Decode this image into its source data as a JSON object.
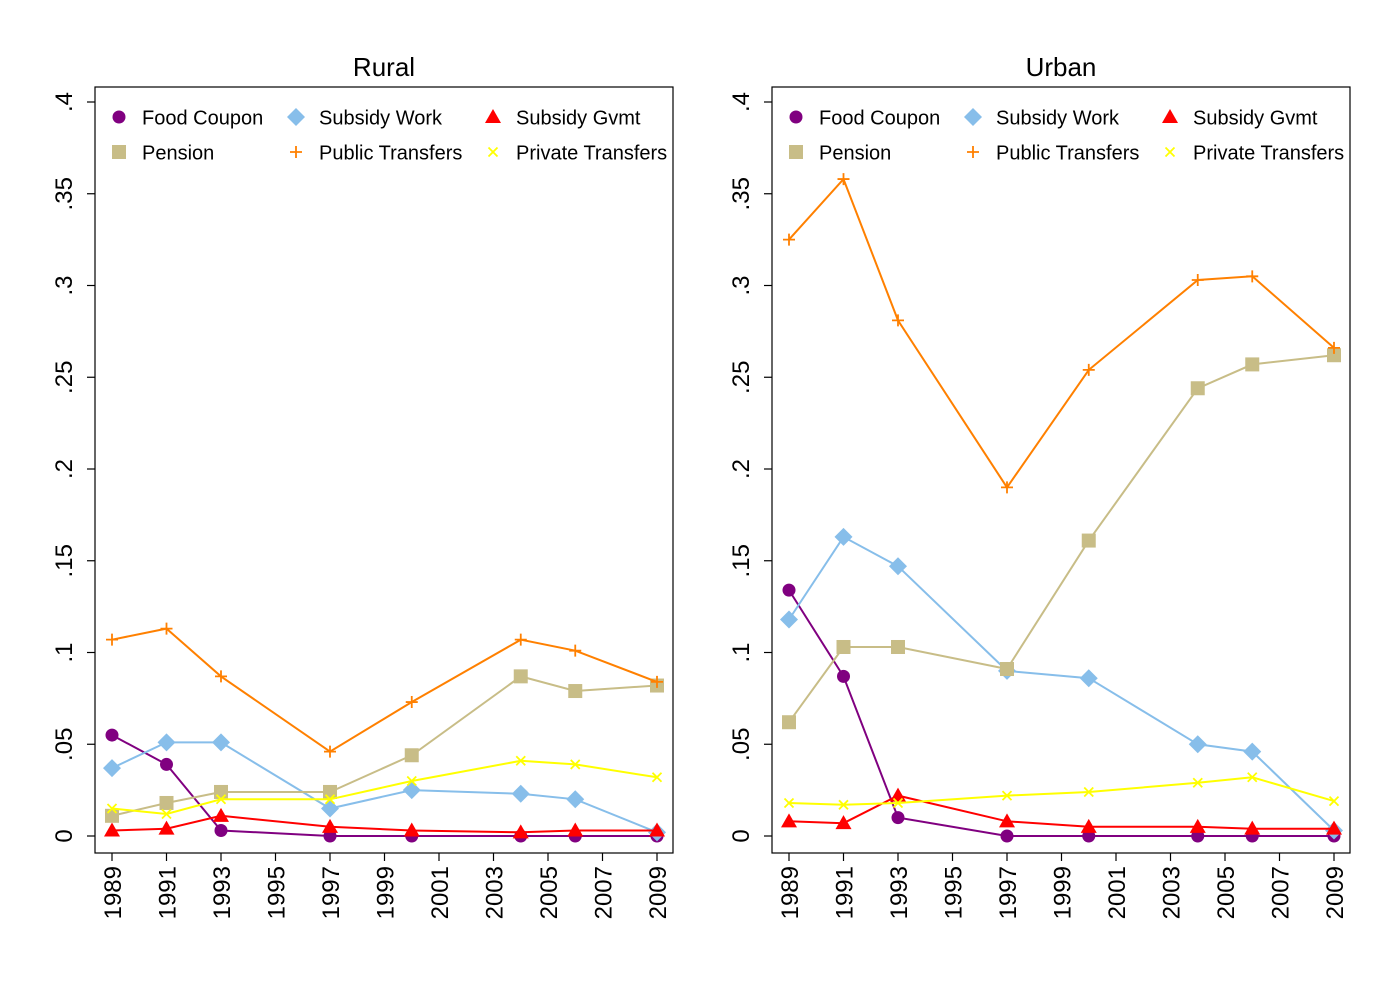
{
  "chart_data": [
    {
      "type": "line",
      "title": "Rural",
      "xlabel": "",
      "ylabel": "",
      "ylim": [
        0,
        0.4
      ],
      "yticks": [
        0,
        0.05,
        0.1,
        0.15,
        0.2,
        0.25,
        0.3,
        0.35,
        0.4
      ],
      "ytick_labels": [
        "0",
        ".05",
        ".1",
        ".15",
        ".2",
        ".25",
        ".3",
        ".35",
        ".4"
      ],
      "xlim": [
        1989,
        2009
      ],
      "xticks": [
        1989,
        1991,
        1993,
        1995,
        1997,
        1999,
        2001,
        2003,
        2005,
        2007,
        2009
      ],
      "xtick_labels": [
        "1989",
        "1991",
        "1993",
        "1995",
        "1997",
        "1999",
        "2001",
        "2003",
        "2005",
        "2007",
        "2009"
      ],
      "grid": false,
      "legend_position": "top, inside plot, 3 columns",
      "x": [
        1989,
        1991,
        1993,
        1997,
        2000,
        2004,
        2006,
        2009
      ],
      "series": [
        {
          "name": "Food Coupon",
          "marker": "circle",
          "color": "#800080",
          "values": [
            0.055,
            0.039,
            0.003,
            0.0,
            0.0,
            0.0,
            0.0,
            0.0
          ]
        },
        {
          "name": "Subsidy Work",
          "marker": "diamond",
          "color": "#87BEEA",
          "values": [
            0.037,
            0.051,
            0.051,
            0.015,
            0.025,
            0.023,
            0.02,
            0.002
          ]
        },
        {
          "name": "Subsidy Gvmt",
          "marker": "triangle",
          "color": "#FF0000",
          "values": [
            0.003,
            0.004,
            0.011,
            0.005,
            0.003,
            0.002,
            0.003,
            0.003
          ]
        },
        {
          "name": "Pension",
          "marker": "square",
          "color": "#C8BD87",
          "values": [
            0.011,
            0.018,
            0.024,
            0.024,
            0.044,
            0.087,
            0.079,
            0.082
          ]
        },
        {
          "name": "Public Transfers",
          "marker": "plus",
          "color": "#FF8000",
          "values": [
            0.107,
            0.113,
            0.087,
            0.046,
            0.073,
            0.107,
            0.101,
            0.084
          ]
        },
        {
          "name": "Private Transfers",
          "marker": "x",
          "color": "#FFFF00",
          "values": [
            0.015,
            0.012,
            0.02,
            0.02,
            0.03,
            0.041,
            0.039,
            0.032
          ]
        }
      ]
    },
    {
      "type": "line",
      "title": "Urban",
      "xlabel": "",
      "ylabel": "",
      "ylim": [
        0,
        0.4
      ],
      "yticks": [
        0,
        0.05,
        0.1,
        0.15,
        0.2,
        0.25,
        0.3,
        0.35,
        0.4
      ],
      "ytick_labels": [
        "0",
        ".05",
        ".1",
        ".15",
        ".2",
        ".25",
        ".3",
        ".35",
        ".4"
      ],
      "xlim": [
        1989,
        2009
      ],
      "xticks": [
        1989,
        1991,
        1993,
        1995,
        1997,
        1999,
        2001,
        2003,
        2005,
        2007,
        2009
      ],
      "xtick_labels": [
        "1989",
        "1991",
        "1993",
        "1995",
        "1997",
        "1999",
        "2001",
        "2003",
        "2005",
        "2007",
        "2009"
      ],
      "grid": false,
      "legend_position": "top, inside plot, 3 columns",
      "x": [
        1989,
        1991,
        1993,
        1997,
        2000,
        2004,
        2006,
        2009
      ],
      "series": [
        {
          "name": "Food Coupon",
          "marker": "circle",
          "color": "#800080",
          "values": [
            0.134,
            0.087,
            0.01,
            0.0,
            0.0,
            0.0,
            0.0,
            0.0
          ]
        },
        {
          "name": "Subsidy Work",
          "marker": "diamond",
          "color": "#87BEEA",
          "values": [
            0.118,
            0.163,
            0.147,
            0.09,
            0.086,
            0.05,
            0.046,
            0.003
          ]
        },
        {
          "name": "Subsidy Gvmt",
          "marker": "triangle",
          "color": "#FF0000",
          "values": [
            0.008,
            0.007,
            0.022,
            0.008,
            0.005,
            0.005,
            0.004,
            0.004
          ]
        },
        {
          "name": "Pension",
          "marker": "square",
          "color": "#C8BD87",
          "values": [
            0.062,
            0.103,
            0.103,
            0.091,
            0.161,
            0.244,
            0.257,
            0.262
          ]
        },
        {
          "name": "Public Transfers",
          "marker": "plus",
          "color": "#FF8000",
          "values": [
            0.325,
            0.358,
            0.281,
            0.19,
            0.254,
            0.303,
            0.305,
            0.266
          ]
        },
        {
          "name": "Private Transfers",
          "marker": "x",
          "color": "#FFFF00",
          "values": [
            0.018,
            0.017,
            0.018,
            0.022,
            0.024,
            0.029,
            0.032,
            0.019
          ]
        }
      ]
    }
  ]
}
